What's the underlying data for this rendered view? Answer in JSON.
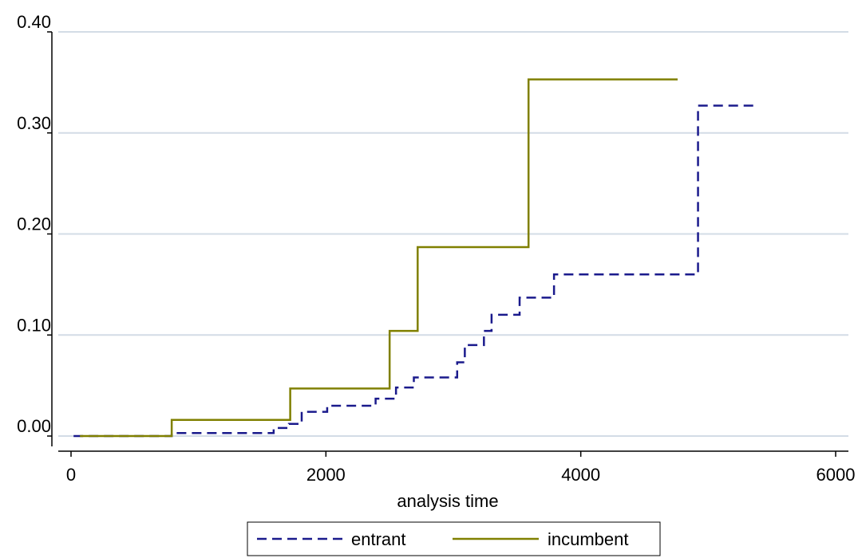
{
  "chart_data": {
    "type": "line",
    "title": "",
    "xlabel": "analysis time",
    "ylabel": "",
    "xlim": [
      0,
      6000
    ],
    "ylim": [
      0,
      0.4
    ],
    "xticks": [
      0,
      2000,
      4000,
      6000
    ],
    "xtick_labels": [
      "0",
      "2000",
      "4000",
      "6000"
    ],
    "yticks": [
      0,
      0.1,
      0.2,
      0.3,
      0.4
    ],
    "ytick_labels": [
      "0.00",
      "0.10",
      "0.20",
      "0.30",
      "0.40"
    ],
    "grid": "horizontal",
    "legend_position": "bottom",
    "step": true,
    "series": [
      {
        "name": "entrant",
        "color": "#1a1a8c",
        "line_style": "dashed",
        "x": [
          20,
          790,
          1590,
          1710,
          1810,
          2010,
          2390,
          2550,
          2690,
          3030,
          3090,
          3240,
          3300,
          3520,
          3790,
          4920,
          5360
        ],
        "y": [
          0.0,
          0.003,
          0.008,
          0.012,
          0.024,
          0.03,
          0.037,
          0.048,
          0.058,
          0.073,
          0.09,
          0.104,
          0.12,
          0.137,
          0.16,
          0.327,
          0.327
        ]
      },
      {
        "name": "incumbent",
        "color": "#808000",
        "line_style": "solid",
        "x": [
          70,
          790,
          1720,
          2500,
          2720,
          3590,
          4760
        ],
        "y": [
          0.0,
          0.016,
          0.047,
          0.104,
          0.187,
          0.353,
          0.353
        ]
      }
    ]
  }
}
